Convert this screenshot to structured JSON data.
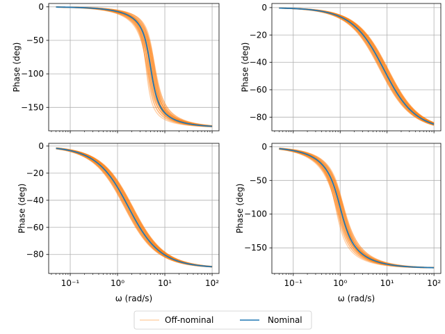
{
  "legend": {
    "entries": [
      {
        "label": "Off-nominal",
        "color": "#ff7f0e",
        "alpha": 0.35
      },
      {
        "label": "Nominal",
        "color": "#1f77b4"
      }
    ],
    "placement": "bottom-center"
  },
  "x_axis": {
    "label": "ω (rad/s)",
    "scale": "log",
    "tick_labels": [
      "10⁻¹",
      "10⁰",
      "10¹",
      "10²"
    ]
  },
  "chart_data": [
    {
      "type": "line",
      "model": "second-order",
      "xscale": "log",
      "xlim": [
        0.035,
        140
      ],
      "ylim": [
        -185,
        5
      ],
      "yticks": [
        0,
        -50,
        -100,
        -150
      ],
      "ylabel": "Phase (deg)",
      "xlabel": "",
      "nominal": {
        "wn": 5.0,
        "zeta": 0.3
      },
      "off_nominal_range": {
        "wn": [
          4.0,
          6.2
        ],
        "zeta": [
          0.22,
          0.4
        ]
      },
      "grid": true
    },
    {
      "type": "line",
      "model": "first-order",
      "xscale": "log",
      "xlim": [
        0.035,
        140
      ],
      "ylim": [
        -90,
        3
      ],
      "yticks": [
        0,
        -20,
        -40,
        -60,
        -80
      ],
      "ylabel": "Phase (deg)",
      "xlabel": "",
      "nominal": {
        "wc": 8.5
      },
      "off_nominal_range": {
        "wc": [
          7.0,
          10.5
        ]
      },
      "grid": true
    },
    {
      "type": "line",
      "model": "first-order",
      "xscale": "log",
      "xlim": [
        0.035,
        140
      ],
      "ylim": [
        -94,
        2
      ],
      "yticks": [
        0,
        -20,
        -40,
        -60,
        -80
      ],
      "ylabel": "Phase (deg)",
      "xlabel": "ω (rad/s)",
      "nominal": {
        "wc": 1.7
      },
      "off_nominal_range": {
        "wc": [
          1.4,
          2.1
        ]
      },
      "grid": true
    },
    {
      "type": "line",
      "model": "second-order",
      "xscale": "log",
      "xlim": [
        0.035,
        140
      ],
      "ylim": [
        -188,
        5
      ],
      "yticks": [
        0,
        -50,
        -100,
        -150
      ],
      "ylabel": "Phase (deg)",
      "xlabel": "ω (rad/s)",
      "nominal": {
        "wn": 1.0,
        "zeta": 0.5
      },
      "off_nominal_range": {
        "wn": [
          0.8,
          1.2
        ],
        "zeta": [
          0.4,
          0.6
        ]
      },
      "grid": true
    }
  ]
}
